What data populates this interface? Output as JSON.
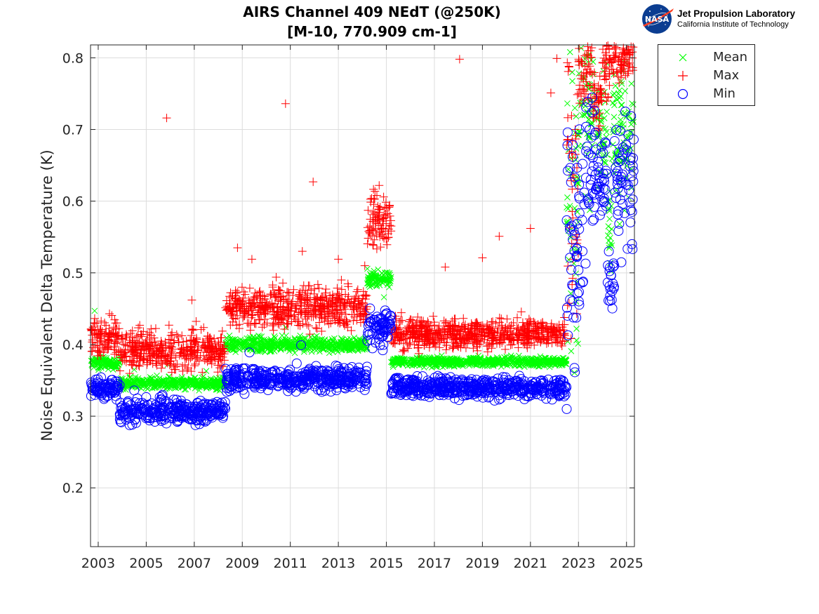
{
  "header": {
    "title_line1": "AIRS Channel 409 NEdT (@250K)",
    "title_line2": "[M-10, 770.909 cm-1]"
  },
  "logo": {
    "badge_text": "NASA",
    "line1": "Jet Propulsion Laboratory",
    "line2": "California Institute of Technology"
  },
  "colors": {
    "mean": "#00ff00",
    "max": "#ff0000",
    "min": "#0000ff",
    "grid": "#dcdcdc",
    "axis": "#262626"
  },
  "chart_data": {
    "type": "scatter",
    "title": "AIRS Channel 409 NEdT (@250K) [M-10, 770.909 cm-1]",
    "xlabel": "",
    "ylabel": "Noise Equivalent Delta Temperature (K)",
    "xlim": [
      2002.68,
      2025.33
    ],
    "ylim": [
      0.118,
      0.818
    ],
    "x_ticks": [
      2003,
      2005,
      2007,
      2009,
      2011,
      2013,
      2015,
      2017,
      2019,
      2021,
      2023,
      2025
    ],
    "x_tick_labels": [
      "2003",
      "2005",
      "2007",
      "2009",
      "2011",
      "2013",
      "2015",
      "2017",
      "2019",
      "2021",
      "2023",
      "2025"
    ],
    "y_ticks": [
      0.2,
      0.3,
      0.4,
      0.5,
      0.6,
      0.7,
      0.8
    ],
    "y_tick_labels": [
      "0.2",
      "0.3",
      "0.4",
      "0.5",
      "0.6",
      "0.7",
      "0.8"
    ],
    "grid": true,
    "legend_position": "outside-top-right",
    "legend": [
      "Mean",
      "Max",
      "Min"
    ],
    "series": [
      {
        "name": "Mean",
        "marker": "x",
        "segments": [
          {
            "x_start": 2002.7,
            "x_end": 2003.9,
            "y": 0.374,
            "spread": 0.004
          },
          {
            "x_start": 2003.9,
            "x_end": 2008.3,
            "y": 0.346,
            "spread": 0.004
          },
          {
            "x_start": 2008.3,
            "x_end": 2014.2,
            "y": 0.4,
            "spread": 0.005
          },
          {
            "x_start": 2014.2,
            "x_end": 2015.2,
            "y": 0.492,
            "spread": 0.006
          },
          {
            "x_start": 2015.2,
            "x_end": 2022.5,
            "y": 0.376,
            "spread": 0.003
          },
          {
            "x_start": 2022.5,
            "x_end": 2023.0,
            "y": 0.58,
            "spread": 0.12
          },
          {
            "x_start": 2023.0,
            "x_end": 2023.7,
            "y": 0.74,
            "spread": 0.06
          },
          {
            "x_start": 2023.7,
            "x_end": 2024.2,
            "y": 0.7,
            "spread": 0.04
          },
          {
            "x_start": 2024.2,
            "x_end": 2024.4,
            "y": 0.56,
            "spread": 0.03
          },
          {
            "x_start": 2024.4,
            "x_end": 2025.3,
            "y": 0.7,
            "spread": 0.05
          }
        ],
        "outliers": [
          {
            "x": 2002.85,
            "y": 0.447
          },
          {
            "x": 2004.5,
            "y": 0.365
          },
          {
            "x": 2005.9,
            "y": 0.372
          },
          {
            "x": 2007.5,
            "y": 0.363
          },
          {
            "x": 2010.8,
            "y": 0.424
          },
          {
            "x": 2012.1,
            "y": 0.412
          },
          {
            "x": 2014.9,
            "y": 0.466
          },
          {
            "x": 2022.65,
            "y": 0.808
          }
        ]
      },
      {
        "name": "Max",
        "marker": "+",
        "segments": [
          {
            "x_start": 2002.7,
            "x_end": 2003.9,
            "y": 0.41,
            "spread": 0.012
          },
          {
            "x_start": 2003.9,
            "x_end": 2008.3,
            "y": 0.392,
            "spread": 0.014
          },
          {
            "x_start": 2008.3,
            "x_end": 2014.2,
            "y": 0.452,
            "spread": 0.014
          },
          {
            "x_start": 2014.2,
            "x_end": 2015.2,
            "y": 0.572,
            "spread": 0.018
          },
          {
            "x_start": 2015.2,
            "x_end": 2022.5,
            "y": 0.415,
            "spread": 0.01
          },
          {
            "x_start": 2022.5,
            "x_end": 2023.0,
            "y": 0.64,
            "spread": 0.14
          },
          {
            "x_start": 2023.0,
            "x_end": 2023.6,
            "y": 0.78,
            "spread": 0.03
          },
          {
            "x_start": 2023.6,
            "x_end": 2024.0,
            "y": 0.74,
            "spread": 0.02
          },
          {
            "x_start": 2024.0,
            "x_end": 2024.5,
            "y": 0.79,
            "spread": 0.02
          },
          {
            "x_start": 2024.5,
            "x_end": 2025.3,
            "y": 0.8,
            "spread": 0.02
          }
        ],
        "outliers": [
          {
            "x": 2005.85,
            "y": 0.716
          },
          {
            "x": 2006.9,
            "y": 0.462
          },
          {
            "x": 2008.8,
            "y": 0.535
          },
          {
            "x": 2009.4,
            "y": 0.519
          },
          {
            "x": 2010.8,
            "y": 0.736
          },
          {
            "x": 2011.5,
            "y": 0.53
          },
          {
            "x": 2011.95,
            "y": 0.627
          },
          {
            "x": 2013.0,
            "y": 0.519
          },
          {
            "x": 2014.1,
            "y": 0.51
          },
          {
            "x": 2014.7,
            "y": 0.622
          },
          {
            "x": 2017.45,
            "y": 0.508
          },
          {
            "x": 2018.05,
            "y": 0.798
          },
          {
            "x": 2019.0,
            "y": 0.521
          },
          {
            "x": 2019.7,
            "y": 0.551
          },
          {
            "x": 2021.0,
            "y": 0.562
          },
          {
            "x": 2021.85,
            "y": 0.751
          },
          {
            "x": 2022.1,
            "y": 0.799
          }
        ]
      },
      {
        "name": "Min",
        "marker": "o",
        "segments": [
          {
            "x_start": 2002.7,
            "x_end": 2003.9,
            "y": 0.34,
            "spread": 0.007
          },
          {
            "x_start": 2003.9,
            "x_end": 2008.3,
            "y": 0.307,
            "spread": 0.008
          },
          {
            "x_start": 2008.3,
            "x_end": 2014.2,
            "y": 0.352,
            "spread": 0.008
          },
          {
            "x_start": 2014.2,
            "x_end": 2015.2,
            "y": 0.425,
            "spread": 0.012
          },
          {
            "x_start": 2015.2,
            "x_end": 2022.5,
            "y": 0.34,
            "spread": 0.007
          },
          {
            "x_start": 2022.5,
            "x_end": 2022.9,
            "y": 0.5,
            "spread": 0.09
          },
          {
            "x_start": 2022.9,
            "x_end": 2023.3,
            "y": 0.58,
            "spread": 0.06
          },
          {
            "x_start": 2023.3,
            "x_end": 2023.7,
            "y": 0.66,
            "spread": 0.05
          },
          {
            "x_start": 2023.7,
            "x_end": 2024.2,
            "y": 0.64,
            "spread": 0.03
          },
          {
            "x_start": 2024.2,
            "x_end": 2024.5,
            "y": 0.49,
            "spread": 0.02
          },
          {
            "x_start": 2024.5,
            "x_end": 2025.3,
            "y": 0.63,
            "spread": 0.04
          }
        ],
        "outliers": [
          {
            "x": 2004.5,
            "y": 0.336
          },
          {
            "x": 2009.3,
            "y": 0.389
          },
          {
            "x": 2011.45,
            "y": 0.399
          },
          {
            "x": 2014.85,
            "y": 0.392
          },
          {
            "x": 2022.55,
            "y": 0.696
          },
          {
            "x": 2024.95,
            "y": 0.725
          },
          {
            "x": 2025.25,
            "y": 0.533
          }
        ]
      }
    ]
  }
}
